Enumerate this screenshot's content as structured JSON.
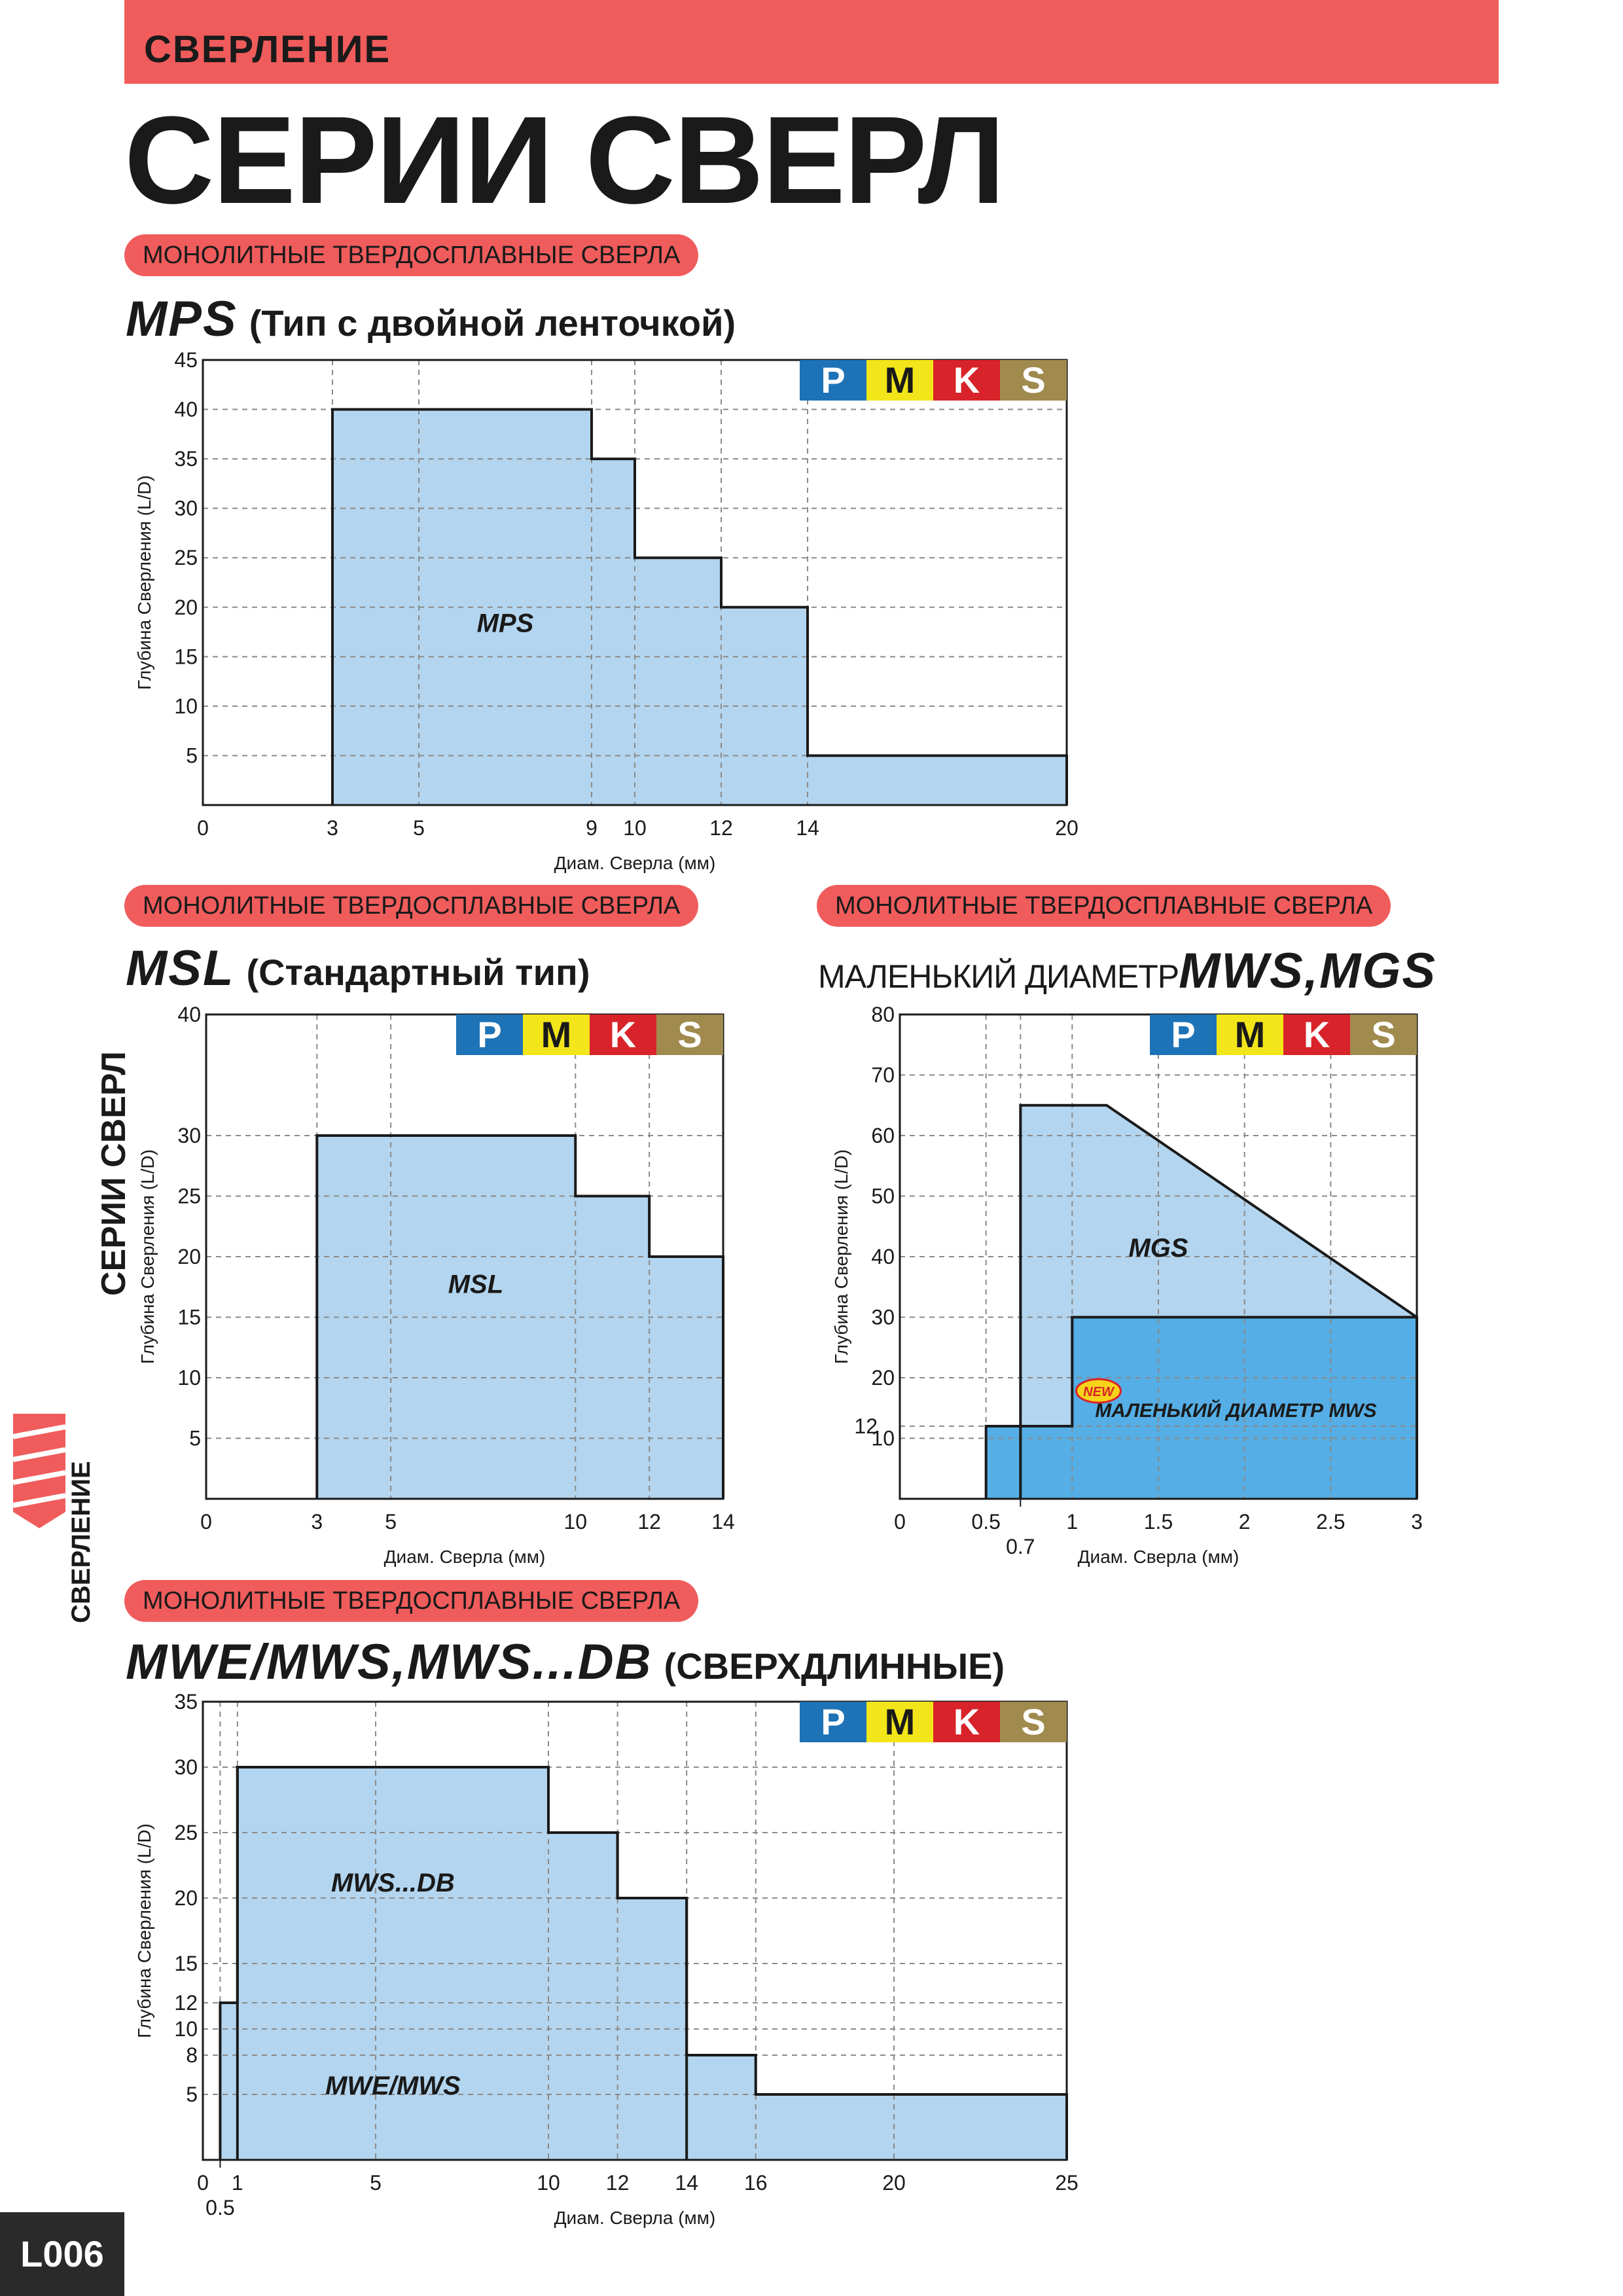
{
  "header": {
    "section": "СВЕРЛЕНИЕ",
    "title": "СЕРИИ СВЕРЛ"
  },
  "sidebar": {
    "title": "СЕРИИ СВЕРЛ",
    "subtitle": "СВЕРЛЕНИЕ"
  },
  "page_number": "L006",
  "pill_label": "МОНОЛИТНЫЕ ТВЕРДОСПЛАВНЫЕ СВЕРЛА",
  "new_badge": "NEW",
  "materials": [
    {
      "label": "P",
      "color": "#1e73b7"
    },
    {
      "label": "M",
      "color": "#f2e61a"
    },
    {
      "label": "K",
      "color": "#d8232a"
    },
    {
      "label": "S",
      "color": "#a08a4e"
    }
  ],
  "colors": {
    "accent": "#f05c5c",
    "fill_light": "#b3d5ef",
    "fill_dark": "#55aee6",
    "grid": "#999999"
  },
  "sections": [
    {
      "code": "MPS",
      "desc": "(Тип с двойной ленточкой)"
    },
    {
      "code": "MSL",
      "desc": "(Стандартный тип)"
    },
    {
      "prefix": "МАЛЕНЬКИЙ ДИАМЕТР",
      "code": "MWS,MGS",
      "desc": ""
    },
    {
      "code": "MWE/MWS,MWS...DB",
      "desc": "(СВЕРХДЛИННЫЕ)"
    }
  ],
  "chart_data": [
    {
      "type": "area",
      "title": "MPS",
      "xlabel": "Диам. Сверла (мм)",
      "ylabel": "Глубина Сверления (L/D)",
      "xlim": [
        0,
        20
      ],
      "ylim": [
        0,
        45
      ],
      "xticks": [
        0,
        3,
        5,
        9,
        10,
        12,
        14,
        20
      ],
      "yticks": [
        5,
        10,
        15,
        20,
        25,
        30,
        35,
        40,
        45
      ],
      "grid": true,
      "series": [
        {
          "name": "MPS",
          "points": [
            [
              3,
              0
            ],
            [
              3,
              40
            ],
            [
              9,
              40
            ],
            [
              9,
              35
            ],
            [
              10,
              35
            ],
            [
              10,
              25
            ],
            [
              12,
              25
            ],
            [
              12,
              20
            ],
            [
              14,
              20
            ],
            [
              14,
              5
            ],
            [
              20,
              5
            ],
            [
              20,
              0
            ]
          ],
          "label_at": [
            7,
            17.5
          ]
        }
      ]
    },
    {
      "type": "area",
      "title": "MSL",
      "xlabel": "Диам. Сверла (мм)",
      "ylabel": "Глубина Сверления (L/D)",
      "xlim": [
        0,
        14
      ],
      "ylim": [
        0,
        40
      ],
      "xticks": [
        0,
        3,
        5,
        10,
        12,
        14
      ],
      "yticks": [
        5,
        10,
        15,
        20,
        25,
        30,
        40
      ],
      "grid": true,
      "series": [
        {
          "name": "MSL",
          "points": [
            [
              3,
              0
            ],
            [
              3,
              30
            ],
            [
              10,
              30
            ],
            [
              10,
              25
            ],
            [
              12,
              25
            ],
            [
              12,
              20
            ],
            [
              14,
              20
            ],
            [
              14,
              0
            ]
          ],
          "label_at": [
            7.3,
            17
          ]
        }
      ]
    },
    {
      "type": "area",
      "title": "МАЛЕНЬКИЙ ДИАМЕТР MWS,MGS",
      "xlabel": "Диам. Сверла (мм)",
      "ylabel": "Глубина Сверления (L/D)",
      "xlim": [
        0,
        3
      ],
      "ylim": [
        0,
        80
      ],
      "xticks": [
        0,
        0.5,
        0.7,
        1,
        1.5,
        2,
        2.5,
        3
      ],
      "yticks": [
        10,
        12,
        20,
        30,
        40,
        50,
        60,
        70,
        80
      ],
      "grid": true,
      "series": [
        {
          "name": "MGS",
          "points": [
            [
              0.7,
              0
            ],
            [
              0.7,
              65
            ],
            [
              1.2,
              65
            ],
            [
              3,
              30
            ],
            [
              3,
              0
            ]
          ],
          "label_at": [
            1.5,
            40
          ]
        },
        {
          "name": "МАЛЕНЬКИЙ ДИАМЕТР MWS",
          "points": [
            [
              0.5,
              0
            ],
            [
              0.5,
              12
            ],
            [
              1,
              12
            ],
            [
              1,
              30
            ],
            [
              3,
              30
            ],
            [
              3,
              0
            ]
          ],
          "label_at": [
            1.95,
            13.5
          ]
        }
      ]
    },
    {
      "type": "area",
      "title": "MWE/MWS,MWS...DB",
      "xlabel": "Диам. Сверла (мм)",
      "ylabel": "Глубина Сверления (L/D)",
      "xlim": [
        0,
        25
      ],
      "ylim": [
        0,
        35
      ],
      "xticks": [
        0,
        0.5,
        1,
        5,
        10,
        12,
        14,
        16,
        20,
        25
      ],
      "yticks": [
        5,
        8,
        10,
        12,
        15,
        20,
        25,
        30,
        35
      ],
      "grid": true,
      "series": [
        {
          "name": "MWS...DB",
          "points": [
            [
              1,
              0
            ],
            [
              1,
              30
            ],
            [
              10,
              30
            ],
            [
              10,
              25
            ],
            [
              12,
              25
            ],
            [
              12,
              20
            ],
            [
              14,
              20
            ],
            [
              14,
              0
            ]
          ],
          "label_at": [
            5.5,
            20.5
          ]
        },
        {
          "name": "MWE/MWS",
          "points": [
            [
              0.5,
              0
            ],
            [
              0.5,
              12
            ],
            [
              1,
              12
            ],
            [
              1,
              30
            ],
            [
              10,
              30
            ],
            [
              10,
              25
            ],
            [
              12,
              25
            ],
            [
              12,
              20
            ],
            [
              14,
              20
            ],
            [
              14,
              8
            ],
            [
              16,
              8
            ],
            [
              16,
              5
            ],
            [
              25,
              5
            ],
            [
              25,
              0
            ]
          ],
          "label_at": [
            5.5,
            5
          ]
        }
      ]
    }
  ]
}
